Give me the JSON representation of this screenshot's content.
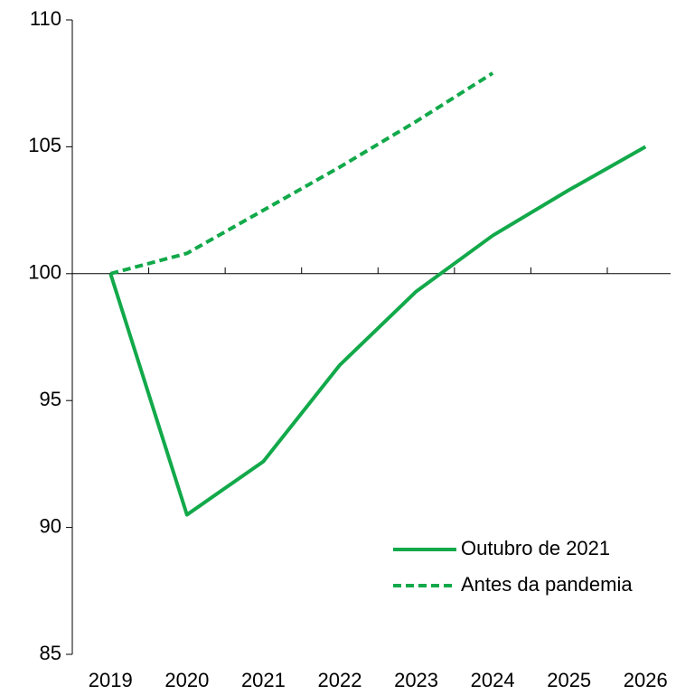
{
  "chart_data": {
    "type": "line",
    "categories": [
      "2019",
      "2020",
      "2021",
      "2022",
      "2023",
      "2024",
      "2025",
      "2026"
    ],
    "series": [
      {
        "name": "Outubro de 2021",
        "color": "#12a94a",
        "dash": false,
        "values": [
          100,
          90.5,
          92.6,
          96.4,
          99.3,
          101.5,
          103.3,
          105.0
        ]
      },
      {
        "name": "Antes da pandemia",
        "color": "#12a94a",
        "dash": true,
        "values": [
          100,
          100.8,
          102.5,
          104.2,
          106.0,
          107.9,
          null,
          null
        ]
      }
    ],
    "ylim": [
      85,
      110
    ],
    "yticks": [
      85,
      90,
      95,
      100,
      105,
      110
    ],
    "x_axis_at": 100,
    "grid": false,
    "legend": "lower right"
  }
}
